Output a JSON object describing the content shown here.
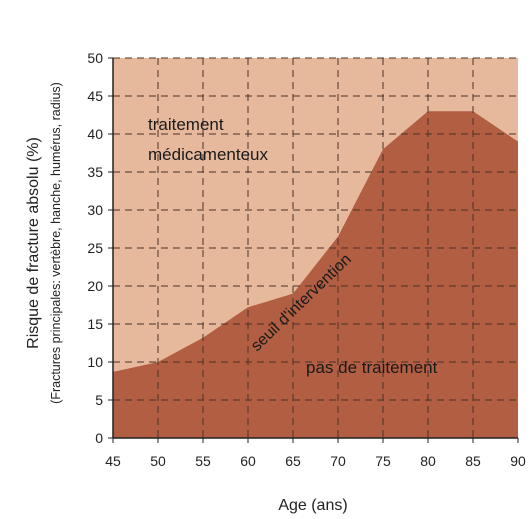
{
  "chart_data": {
    "type": "area",
    "x": [
      45,
      50,
      55,
      60,
      65,
      70,
      75,
      80,
      85,
      90
    ],
    "series": [
      {
        "values": [
          8.7,
          10,
          13.2,
          17.2,
          19,
          26.5,
          38,
          43,
          43,
          39
        ]
      }
    ],
    "xlim": [
      45,
      90
    ],
    "ylim": [
      0,
      50
    ],
    "xticks": [
      "45",
      "50",
      "55",
      "60",
      "65",
      "70",
      "75",
      "80",
      "85",
      "90"
    ],
    "yticks": [
      "0",
      "5",
      "10",
      "15",
      "20",
      "25",
      "30",
      "35",
      "40",
      "45",
      "50"
    ],
    "xlabel": "Age (ans)",
    "ylabel": "Risque de fracture absolu (%)",
    "ylabel_sub": "(Fractures principales: vertèbre, hanche, humérus, radius)",
    "grid": true,
    "region_upper_line1": "traitement",
    "region_upper_line2": "médicamenteux",
    "region_lower": "pas de traitement",
    "curve_label": "seuil d'intervention",
    "colors": {
      "upper_fill": "#e6b99d",
      "lower_fill": "#b25e43",
      "grid": "#4a3328"
    }
  }
}
